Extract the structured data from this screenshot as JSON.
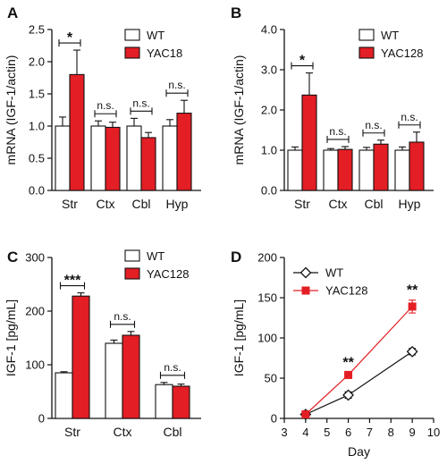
{
  "chart_data": [
    {
      "id": "A",
      "type": "bar",
      "panel_label": "A",
      "categories": [
        "Str",
        "Ctx",
        "Cbl",
        "Hyp"
      ],
      "series": [
        {
          "name": "WT",
          "color": "#ffffff",
          "values": [
            1.0,
            1.0,
            1.0,
            1.0
          ],
          "errors": [
            0.14,
            0.08,
            0.12,
            0.1
          ]
        },
        {
          "name": "YAC18",
          "color": "#e31e24",
          "values": [
            1.8,
            0.98,
            0.82,
            1.2
          ],
          "errors": [
            0.38,
            0.08,
            0.08,
            0.2
          ]
        }
      ],
      "ylabel": "mRNA (IGF-1/actin)",
      "ylim": [
        0,
        2.5
      ],
      "yticks": [
        "0.0",
        "0.5",
        "1.0",
        "1.5",
        "2.0",
        "2.5"
      ],
      "significance": [
        "*",
        "n.s.",
        "n.s.",
        "n.s."
      ],
      "legend": "top-right"
    },
    {
      "id": "B",
      "type": "bar",
      "panel_label": "B",
      "categories": [
        "Str",
        "Ctx",
        "Cbl",
        "Hyp"
      ],
      "series": [
        {
          "name": "WT",
          "color": "#ffffff",
          "values": [
            1.0,
            1.0,
            1.0,
            1.0
          ],
          "errors": [
            0.08,
            0.04,
            0.07,
            0.08
          ]
        },
        {
          "name": "YAC128",
          "color": "#e31e24",
          "values": [
            2.37,
            1.02,
            1.15,
            1.2
          ],
          "errors": [
            0.55,
            0.07,
            0.1,
            0.25
          ]
        }
      ],
      "ylabel": "mRNA (IGF-1/actin)",
      "ylim": [
        0,
        4.0
      ],
      "yticks": [
        "0.0",
        "1.0",
        "2.0",
        "3.0",
        "4.0"
      ],
      "significance": [
        "*",
        "n.s.",
        "n.s.",
        "n.s."
      ],
      "legend": "top-right"
    },
    {
      "id": "C",
      "type": "bar",
      "panel_label": "C",
      "categories": [
        "Str",
        "Ctx",
        "Cbl"
      ],
      "series": [
        {
          "name": "WT",
          "color": "#ffffff",
          "values": [
            85,
            140,
            63
          ],
          "errors": [
            2,
            6,
            4
          ]
        },
        {
          "name": "YAC128",
          "color": "#e31e24",
          "values": [
            228,
            155,
            60
          ],
          "errors": [
            6,
            7,
            4
          ]
        }
      ],
      "ylabel": "IGF-1 [pg/mL]",
      "ylim": [
        0,
        300
      ],
      "yticks": [
        "0",
        "100",
        "200",
        "300"
      ],
      "significance": [
        "***",
        "n.s.",
        "n.s."
      ],
      "legend": "top-right"
    },
    {
      "id": "D",
      "type": "line",
      "panel_label": "D",
      "x": [
        4,
        6,
        9
      ],
      "series": [
        {
          "name": "WT",
          "color": "#111111",
          "marker": "diamond-open",
          "values": [
            5,
            29,
            83
          ],
          "errors": [
            2,
            4,
            4
          ]
        },
        {
          "name": "YAC128",
          "color": "#e31e24",
          "marker": "square-filled",
          "values": [
            5,
            54,
            139
          ],
          "errors": [
            2,
            3,
            8
          ]
        }
      ],
      "xlabel": "Day",
      "ylabel": "IGF-1 [pg/mL]",
      "xlim": [
        3,
        10
      ],
      "ylim": [
        0,
        200
      ],
      "xticks": [
        "3",
        "4",
        "5",
        "6",
        "7",
        "8",
        "9",
        "10"
      ],
      "yticks": [
        "0",
        "50",
        "100",
        "150",
        "200"
      ],
      "annotations": [
        {
          "x": 6,
          "text": "**"
        },
        {
          "x": 9,
          "text": "**"
        }
      ],
      "legend": "top-left"
    }
  ]
}
